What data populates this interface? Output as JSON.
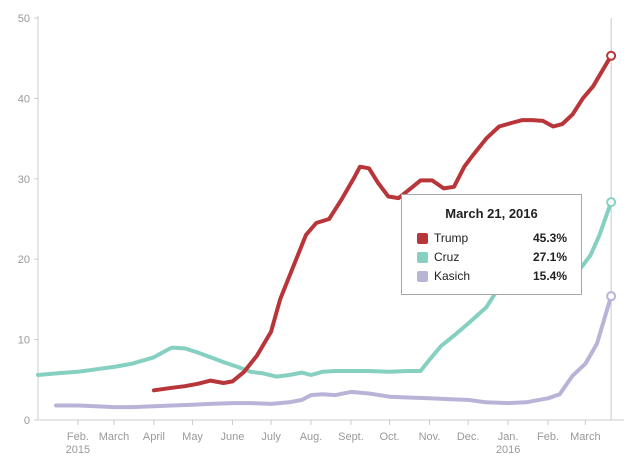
{
  "chart_data": {
    "type": "line",
    "title": "",
    "xlabel": "",
    "ylabel": "",
    "ylim": [
      0,
      50
    ],
    "yticks": [
      0,
      10,
      20,
      30,
      40,
      50
    ],
    "xlim": [
      "2015-01-01",
      "2016-03-31"
    ],
    "x_ticks": [
      {
        "date": "2015-02-01",
        "label": "Feb.",
        "sublabel": "2015"
      },
      {
        "date": "2015-03-01",
        "label": "March",
        "sublabel": ""
      },
      {
        "date": "2015-04-01",
        "label": "April",
        "sublabel": ""
      },
      {
        "date": "2015-05-01",
        "label": "May",
        "sublabel": ""
      },
      {
        "date": "2015-06-01",
        "label": "June",
        "sublabel": ""
      },
      {
        "date": "2015-07-01",
        "label": "July",
        "sublabel": ""
      },
      {
        "date": "2015-08-01",
        "label": "Aug.",
        "sublabel": ""
      },
      {
        "date": "2015-09-01",
        "label": "Sept.",
        "sublabel": ""
      },
      {
        "date": "2015-10-01",
        "label": "Oct.",
        "sublabel": ""
      },
      {
        "date": "2015-11-01",
        "label": "Nov.",
        "sublabel": ""
      },
      {
        "date": "2015-12-01",
        "label": "Dec.",
        "sublabel": ""
      },
      {
        "date": "2016-01-01",
        "label": "Jan.",
        "sublabel": "2016"
      },
      {
        "date": "2016-02-01",
        "label": "Feb.",
        "sublabel": ""
      },
      {
        "date": "2016-03-01",
        "label": "March",
        "sublabel": ""
      }
    ],
    "grid": false,
    "series": [
      {
        "name": "Trump",
        "color": "#b8363a",
        "points": [
          [
            "2015-04-01",
            3.7
          ],
          [
            "2015-04-15",
            4.0
          ],
          [
            "2015-04-25",
            4.2
          ],
          [
            "2015-05-05",
            4.5
          ],
          [
            "2015-05-15",
            4.9
          ],
          [
            "2015-05-25",
            4.6
          ],
          [
            "2015-06-01",
            4.8
          ],
          [
            "2015-06-10",
            6.0
          ],
          [
            "2015-06-20",
            8.0
          ],
          [
            "2015-07-01",
            11.0
          ],
          [
            "2015-07-08",
            15.0
          ],
          [
            "2015-07-18",
            19.0
          ],
          [
            "2015-07-28",
            23.0
          ],
          [
            "2015-08-05",
            24.5
          ],
          [
            "2015-08-15",
            25.0
          ],
          [
            "2015-08-25",
            27.5
          ],
          [
            "2015-09-03",
            30.0
          ],
          [
            "2015-09-08",
            31.5
          ],
          [
            "2015-09-15",
            31.3
          ],
          [
            "2015-09-22",
            29.5
          ],
          [
            "2015-09-30",
            27.8
          ],
          [
            "2015-10-08",
            27.6
          ],
          [
            "2015-10-15",
            28.5
          ],
          [
            "2015-10-25",
            29.8
          ],
          [
            "2015-11-03",
            29.8
          ],
          [
            "2015-11-12",
            28.8
          ],
          [
            "2015-11-20",
            29.0
          ],
          [
            "2015-11-28",
            31.5
          ],
          [
            "2015-12-05",
            33.0
          ],
          [
            "2015-12-15",
            35.0
          ],
          [
            "2015-12-25",
            36.5
          ],
          [
            "2016-01-05",
            37.0
          ],
          [
            "2016-01-12",
            37.3
          ],
          [
            "2016-01-20",
            37.3
          ],
          [
            "2016-01-28",
            37.2
          ],
          [
            "2016-02-05",
            36.5
          ],
          [
            "2016-02-12",
            36.8
          ],
          [
            "2016-02-20",
            38.0
          ],
          [
            "2016-02-28",
            40.0
          ],
          [
            "2016-03-07",
            41.5
          ],
          [
            "2016-03-21",
            45.3
          ]
        ]
      },
      {
        "name": "Cruz",
        "color": "#86d0c1",
        "points": [
          [
            "2015-01-01",
            5.6
          ],
          [
            "2015-01-15",
            5.8
          ],
          [
            "2015-02-01",
            6.0
          ],
          [
            "2015-02-15",
            6.3
          ],
          [
            "2015-03-01",
            6.6
          ],
          [
            "2015-03-15",
            7.0
          ],
          [
            "2015-04-01",
            7.8
          ],
          [
            "2015-04-10",
            8.6
          ],
          [
            "2015-04-15",
            9.0
          ],
          [
            "2015-04-25",
            8.9
          ],
          [
            "2015-05-05",
            8.4
          ],
          [
            "2015-05-15",
            7.8
          ],
          [
            "2015-05-25",
            7.2
          ],
          [
            "2015-06-05",
            6.6
          ],
          [
            "2015-06-15",
            6.0
          ],
          [
            "2015-06-25",
            5.8
          ],
          [
            "2015-07-05",
            5.4
          ],
          [
            "2015-07-15",
            5.6
          ],
          [
            "2015-07-25",
            5.9
          ],
          [
            "2015-08-01",
            5.6
          ],
          [
            "2015-08-10",
            6.0
          ],
          [
            "2015-08-20",
            6.1
          ],
          [
            "2015-09-01",
            6.1
          ],
          [
            "2015-09-15",
            6.1
          ],
          [
            "2015-10-01",
            6.0
          ],
          [
            "2015-10-15",
            6.1
          ],
          [
            "2015-10-25",
            6.1
          ],
          [
            "2015-11-01",
            7.5
          ],
          [
            "2015-11-10",
            9.2
          ],
          [
            "2015-11-20",
            10.5
          ],
          [
            "2015-12-01",
            12.0
          ],
          [
            "2015-12-15",
            14.0
          ],
          [
            "2015-12-25",
            16.5
          ],
          [
            "2016-01-05",
            18.3
          ],
          [
            "2016-01-20",
            18.8
          ],
          [
            "2016-02-01",
            18.5
          ],
          [
            "2016-02-15",
            18.7
          ],
          [
            "2016-02-25",
            18.6
          ],
          [
            "2016-03-05",
            20.5
          ],
          [
            "2016-03-12",
            23.0
          ],
          [
            "2016-03-21",
            27.1
          ]
        ]
      },
      {
        "name": "Kasich",
        "color": "#b8b4d8",
        "points": [
          [
            "2015-01-15",
            1.8
          ],
          [
            "2015-02-01",
            1.8
          ],
          [
            "2015-02-15",
            1.7
          ],
          [
            "2015-03-01",
            1.6
          ],
          [
            "2015-03-15",
            1.6
          ],
          [
            "2015-04-01",
            1.7
          ],
          [
            "2015-04-15",
            1.8
          ],
          [
            "2015-05-01",
            1.9
          ],
          [
            "2015-05-15",
            2.0
          ],
          [
            "2015-06-01",
            2.1
          ],
          [
            "2015-06-15",
            2.1
          ],
          [
            "2015-07-01",
            2.0
          ],
          [
            "2015-07-15",
            2.2
          ],
          [
            "2015-07-25",
            2.5
          ],
          [
            "2015-08-01",
            3.1
          ],
          [
            "2015-08-10",
            3.2
          ],
          [
            "2015-08-20",
            3.1
          ],
          [
            "2015-09-01",
            3.5
          ],
          [
            "2015-09-15",
            3.3
          ],
          [
            "2015-10-01",
            2.9
          ],
          [
            "2015-10-15",
            2.8
          ],
          [
            "2015-11-01",
            2.7
          ],
          [
            "2015-11-15",
            2.6
          ],
          [
            "2015-12-01",
            2.5
          ],
          [
            "2015-12-15",
            2.2
          ],
          [
            "2016-01-01",
            2.1
          ],
          [
            "2016-01-15",
            2.2
          ],
          [
            "2016-02-01",
            2.7
          ],
          [
            "2016-02-10",
            3.2
          ],
          [
            "2016-02-20",
            5.5
          ],
          [
            "2016-03-01",
            7.0
          ],
          [
            "2016-03-10",
            9.5
          ],
          [
            "2016-03-21",
            15.4
          ]
        ]
      }
    ],
    "tooltip": {
      "title": "March 21, 2016",
      "rows": [
        {
          "name": "Trump",
          "value": "45.3%",
          "color": "#b8363a"
        },
        {
          "name": "Cruz",
          "value": "27.1%",
          "color": "#86d0c1"
        },
        {
          "name": "Kasich",
          "value": "15.4%",
          "color": "#b8b4d8"
        }
      ]
    }
  }
}
